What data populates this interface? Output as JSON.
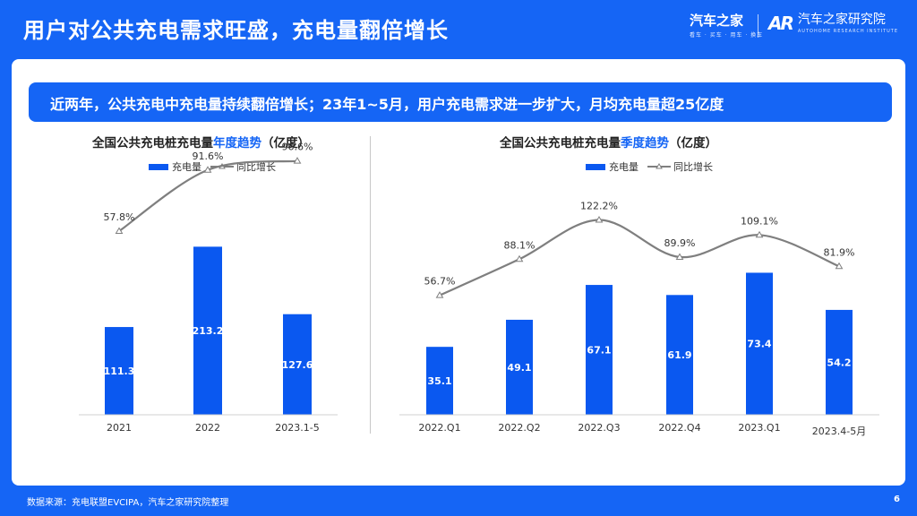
{
  "slide_title": "用户对公共充电需求旺盛，充电量翻倍增长",
  "brand": {
    "name1": "汽车之家",
    "sub1": "看车 · 买车 · 用车 · 换车",
    "mark2": "AR",
    "name2": "汽车之家研究院",
    "sub2": "AUTOHOME RESEARCH INSTITUTE"
  },
  "banner_text": "近两年，公共充电中充电量持续翻倍增长；23年1~5月，用户充电需求进一步扩大，月均充电量超25亿度",
  "colors": {
    "bar": "#0a58f0",
    "line": "#7f7f7f",
    "accent": "#1565f5"
  },
  "chart_data": [
    {
      "type": "bar",
      "title_prefix": "全国公共充电桩充电量",
      "title_highlight": "年度趋势",
      "title_suffix": "（亿度）",
      "categories": [
        "2021",
        "2022",
        "2023.1-5"
      ],
      "series": [
        {
          "name": "充电量",
          "type": "bar",
          "values": [
            111.3,
            213.2,
            127.6
          ],
          "labels": [
            "111.3",
            "213.2",
            "127.6"
          ]
        },
        {
          "name": "同比增长",
          "type": "line",
          "values": [
            57.8,
            91.6,
            96.6
          ],
          "labels": [
            "57.8%",
            "91.6%",
            "96.6%"
          ]
        }
      ],
      "legend_position": "top-center",
      "grid": false
    },
    {
      "type": "bar",
      "title_prefix": "全国公共充电桩充电量",
      "title_highlight": "季度趋势",
      "title_suffix": "（亿度）",
      "categories": [
        "2022.Q1",
        "2022.Q2",
        "2022.Q3",
        "2022.Q4",
        "2023.Q1",
        "2023.4-5月"
      ],
      "series": [
        {
          "name": "充电量",
          "type": "bar",
          "values": [
            35.1,
            49.1,
            67.1,
            61.9,
            73.4,
            54.2
          ],
          "labels": [
            "35.1",
            "49.1",
            "67.1",
            "61.9",
            "73.4",
            "54.2"
          ]
        },
        {
          "name": "同比增长",
          "type": "line",
          "values": [
            56.7,
            88.1,
            122.2,
            89.9,
            109.1,
            81.9
          ],
          "labels": [
            "56.7%",
            "88.1%",
            "122.2%",
            "89.9%",
            "109.1%",
            "81.9%"
          ]
        }
      ],
      "legend_position": "top-center",
      "grid": false
    }
  ],
  "footer_source": "数据来源：充电联盟EVCIPA，汽车之家研究院整理",
  "page_number": "6"
}
